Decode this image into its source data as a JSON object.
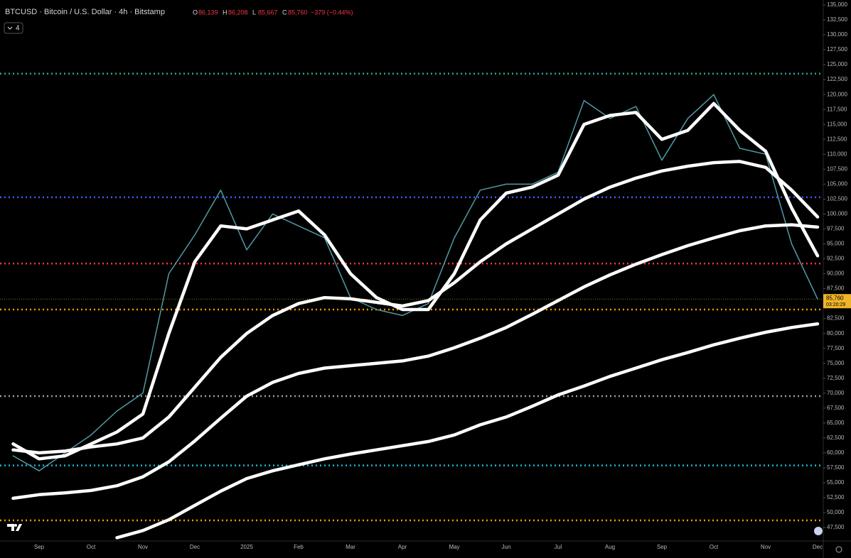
{
  "chart_data": {
    "type": "line",
    "title": "BTCUSD · Bitcoin / U.S. Dollar · 4h · Bitstamp",
    "ohlc": [
      {
        "key": "O",
        "label": "86,139"
      },
      {
        "key": "H",
        "label": "86,208"
      },
      {
        "key": "L",
        "label": "85,667"
      },
      {
        "key": "C",
        "label": "85,760"
      }
    ],
    "change": "−379 (−0.44%)",
    "indicator_count": "4",
    "last_price": {
      "value": 85760,
      "label": "85,760"
    },
    "countdown": "03:20:29",
    "categories": [
      null,
      "Sep",
      null,
      "Oct",
      null,
      "Nov",
      null,
      "Dec",
      null,
      "2025",
      null,
      "Feb",
      null,
      "Mar",
      null,
      "Apr",
      null,
      "May",
      null,
      "Jun",
      null,
      "Jul",
      null,
      "Aug",
      null,
      "Sep",
      null,
      "Oct",
      null,
      "Nov",
      null,
      "Dec"
    ],
    "series": [
      {
        "color": "#4f9aa6",
        "values": [
          59500,
          57000,
          60000,
          63000,
          67000,
          70000,
          90000,
          96500,
          104000,
          94000,
          100000,
          98000,
          96000,
          86000,
          84000,
          83000,
          85000,
          96000,
          104000,
          105000,
          105000,
          107000,
          119000,
          116000,
          118000,
          109000,
          116000,
          120000,
          111000,
          110000,
          95000,
          85760
        ]
      },
      {
        "color": "#ffffff",
        "values": [
          61500,
          59000,
          59500,
          61500,
          63500,
          66500,
          80000,
          92000,
          98000,
          97500,
          99000,
          100500,
          96500,
          90000,
          86000,
          84000,
          84000,
          90000,
          99000,
          103500,
          104500,
          106500,
          115000,
          116500,
          117000,
          112500,
          114000,
          118500,
          114000,
          110500,
          101000,
          93000
        ]
      },
      {
        "color": "#ffffff",
        "values": [
          60500,
          60000,
          60300,
          61000,
          61500,
          62500,
          66000,
          71000,
          76000,
          80000,
          83000,
          85000,
          86000,
          85800,
          85200,
          84600,
          85500,
          88500,
          92000,
          95000,
          97500,
          100000,
          102500,
          104500,
          106000,
          107200,
          108000,
          108600,
          108800,
          107800,
          104000,
          99500
        ]
      },
      {
        "color": "#ffffff",
        "values": [
          52400,
          53000,
          53300,
          53700,
          54500,
          56000,
          58500,
          62000,
          65800,
          69500,
          71800,
          73300,
          74200,
          74600,
          75000,
          75400,
          76200,
          77600,
          79200,
          81000,
          83200,
          85500,
          87800,
          89800,
          91600,
          93200,
          94700,
          96000,
          97200,
          98000,
          98200,
          97800
        ]
      },
      {
        "color": "#ffffff",
        "values": [
          null,
          null,
          null,
          null,
          45800,
          47000,
          48800,
          51200,
          53600,
          55700,
          57000,
          58000,
          59000,
          59800,
          60500,
          61200,
          61900,
          63000,
          64700,
          66000,
          67800,
          69700,
          71200,
          72800,
          74200,
          75600,
          76800,
          78100,
          79200,
          80200,
          81000,
          81600
        ]
      }
    ],
    "levels": [
      {
        "value": 123500,
        "color": "#26a69a"
      },
      {
        "value": 102800,
        "color": "#3f5bff"
      },
      {
        "value": 91700,
        "color": "#f23645"
      },
      {
        "value": 84000,
        "color": "#ff9800"
      },
      {
        "value": 69500,
        "color": "#9e9e9e"
      },
      {
        "value": 57900,
        "color": "#22b8d4"
      },
      {
        "value": 48700,
        "color": "#ff9800"
      }
    ],
    "ylim": [
      45250,
      135830
    ],
    "yticks": [
      {
        "value": 135000,
        "label": "135,000"
      },
      {
        "value": 132500,
        "label": "132,500"
      },
      {
        "value": 130000,
        "label": "130,000"
      },
      {
        "value": 127500,
        "label": "127,500"
      },
      {
        "value": 125000,
        "label": "125,000"
      },
      {
        "value": 122500,
        "label": "122,500"
      },
      {
        "value": 120000,
        "label": "120,000"
      },
      {
        "value": 117500,
        "label": "117,500"
      },
      {
        "value": 115000,
        "label": "115,000"
      },
      {
        "value": 112500,
        "label": "112,500"
      },
      {
        "value": 110000,
        "label": "110,000"
      },
      {
        "value": 107500,
        "label": "107,500"
      },
      {
        "value": 105000,
        "label": "105,000"
      },
      {
        "value": 102500,
        "label": "102,500"
      },
      {
        "value": 100000,
        "label": "100,000"
      },
      {
        "value": 97500,
        "label": "97,500"
      },
      {
        "value": 95000,
        "label": "95,000"
      },
      {
        "value": 92500,
        "label": "92,500"
      },
      {
        "value": 90000,
        "label": "90,000"
      },
      {
        "value": 87500,
        "label": "87,500"
      },
      {
        "value": 85000,
        "label": "85,000"
      },
      {
        "value": 82500,
        "label": "82,500"
      },
      {
        "value": 80000,
        "label": "80,000"
      },
      {
        "value": 77500,
        "label": "77,500"
      },
      {
        "value": 75000,
        "label": "75,000"
      },
      {
        "value": 72500,
        "label": "72,500"
      },
      {
        "value": 70000,
        "label": "70,000"
      },
      {
        "value": 67500,
        "label": "67,500"
      },
      {
        "value": 65000,
        "label": "65,000"
      },
      {
        "value": 62500,
        "label": "62,500"
      },
      {
        "value": 60000,
        "label": "60,000"
      },
      {
        "value": 57500,
        "label": "57,500"
      },
      {
        "value": 55000,
        "label": "55,000"
      },
      {
        "value": 52500,
        "label": "52,500"
      },
      {
        "value": 50000,
        "label": "50,000"
      },
      {
        "value": 47500,
        "label": "47,500"
      }
    ],
    "grid": false
  }
}
